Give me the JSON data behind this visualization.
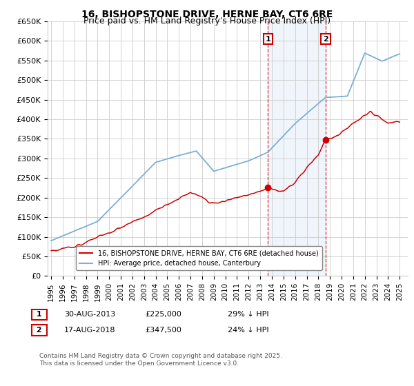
{
  "title": "16, BISHOPSTONE DRIVE, HERNE BAY, CT6 6RE",
  "subtitle": "Price paid vs. HM Land Registry's House Price Index (HPI)",
  "ylim": [
    0,
    650000
  ],
  "yticks": [
    0,
    50000,
    100000,
    150000,
    200000,
    250000,
    300000,
    350000,
    400000,
    450000,
    500000,
    550000,
    600000,
    650000
  ],
  "ytick_labels": [
    "£0",
    "£50K",
    "£100K",
    "£150K",
    "£200K",
    "£250K",
    "£300K",
    "£350K",
    "£400K",
    "£450K",
    "£500K",
    "£550K",
    "£600K",
    "£650K"
  ],
  "xlim_start": 1994.7,
  "xlim_end": 2025.7,
  "hpi_color": "#7bafd4",
  "price_color": "#cc0000",
  "vline_color": "#cc0000",
  "shade_color": "#cce0f0",
  "background_color": "#ffffff",
  "grid_color": "#cccccc",
  "purchase1_year": 2013.66,
  "purchase1_price": 225000,
  "purchase2_year": 2018.63,
  "purchase2_price": 347500,
  "legend_line1": "16, BISHOPSTONE DRIVE, HERNE BAY, CT6 6RE (detached house)",
  "legend_line2": "HPI: Average price, detached house, Canterbury",
  "annotation1_label": "1",
  "annotation1_date": "30-AUG-2013",
  "annotation1_price": "£225,000",
  "annotation1_hpi": "29% ↓ HPI",
  "annotation2_label": "2",
  "annotation2_date": "17-AUG-2018",
  "annotation2_price": "£347,500",
  "annotation2_hpi": "24% ↓ HPI",
  "footer": "Contains HM Land Registry data © Crown copyright and database right 2025.\nThis data is licensed under the Open Government Licence v3.0.",
  "title_fontsize": 10,
  "subtitle_fontsize": 9
}
